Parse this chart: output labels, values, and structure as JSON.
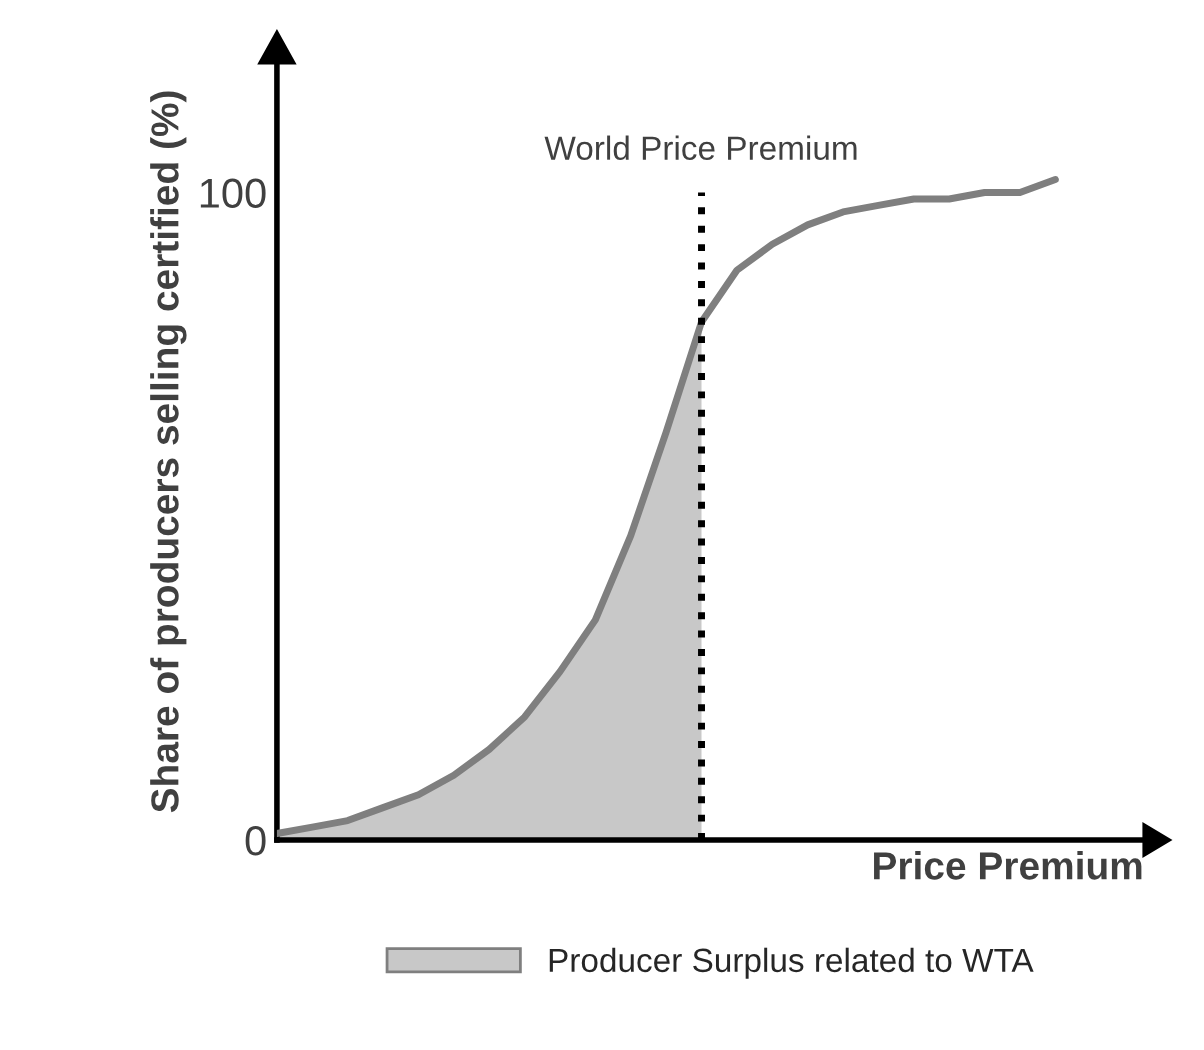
{
  "chart_data": {
    "type": "line",
    "xlabel": "Price Premium",
    "ylabel": "Share of producers selling certified (%)",
    "categories": [
      null,
      null,
      null,
      null,
      null,
      null,
      null,
      null,
      null,
      null,
      null,
      null,
      null,
      null,
      null,
      null,
      null,
      null,
      null,
      null,
      null,
      null,
      null
    ],
    "series": [
      {
        "type": "area",
        "name": "Producer Surplus related to WTA",
        "color": "#c8c8c8",
        "values": [
          1,
          2,
          3,
          5,
          7,
          10,
          14,
          19,
          26,
          34,
          47,
          63,
          80,
          null,
          null,
          null,
          null,
          null,
          null,
          null,
          null,
          null,
          null
        ]
      },
      {
        "color": "#7f7f7f",
        "values": [
          1,
          2,
          3,
          5,
          7,
          10,
          14,
          19,
          26,
          34,
          47,
          63,
          80,
          88,
          92,
          95,
          97,
          98,
          99,
          99,
          100,
          100,
          102
        ]
      }
    ],
    "ylim": [
      0,
      120
    ],
    "yticks": [
      0,
      100
    ],
    "tick_labels": "y",
    "grid": false,
    "legend": "bottom",
    "annotations": [
      "World Price Premium"
    ]
  }
}
